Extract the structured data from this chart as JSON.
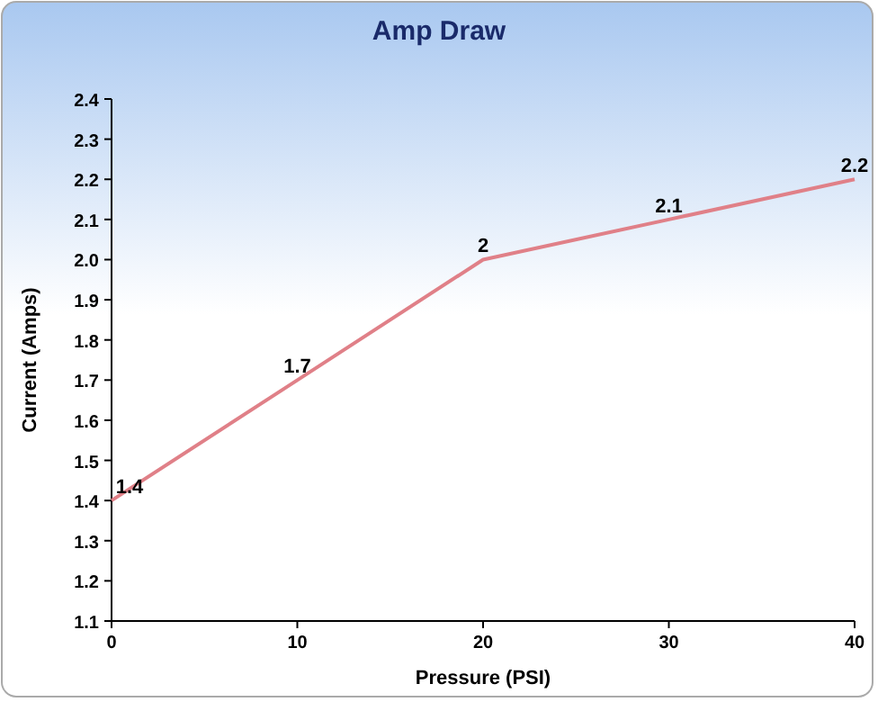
{
  "chart_data": {
    "type": "line",
    "title": "Amp Draw",
    "xlabel": "Pressure (PSI)",
    "ylabel": "Current (Amps)",
    "x": [
      0,
      10,
      20,
      30,
      40
    ],
    "series": [
      {
        "color": "#e08088",
        "values": [
          1.4,
          1.7,
          2,
          2.1,
          2.2
        ]
      }
    ],
    "xlim": [
      0,
      40
    ],
    "xticks": [
      0,
      10,
      20,
      30,
      40
    ],
    "ylim": [
      1.1,
      2.4
    ],
    "yticks": [
      1.1,
      1.2,
      1.3,
      1.4,
      1.5,
      1.6,
      1.7,
      1.8,
      1.9,
      {
        "value": 2,
        "label": "2.0"
      },
      2.1,
      2.2,
      2.3,
      2.4
    ],
    "data_labels": true,
    "marker": "none",
    "line_style": "solid"
  }
}
